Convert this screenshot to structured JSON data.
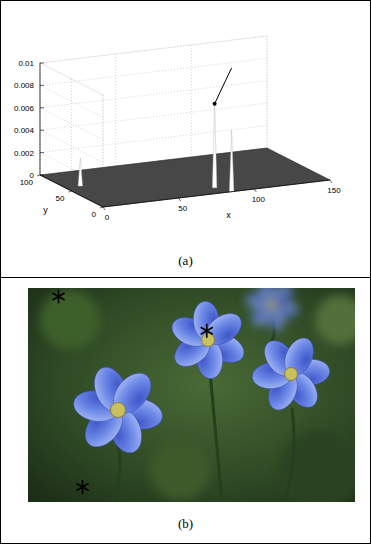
{
  "figure": {
    "panel_labels": [
      "(a)",
      "(b)"
    ]
  },
  "chart_data": {
    "type": "surface3d",
    "x_label": "x",
    "y_label": "y",
    "xlim": [
      0,
      150
    ],
    "ylim": [
      0,
      100
    ],
    "zlim": [
      0,
      0.01
    ],
    "xticks": [
      0,
      50,
      100,
      150
    ],
    "yticks": [
      0,
      50,
      100
    ],
    "zticks": [
      0,
      0.002,
      0.004,
      0.006,
      0.008,
      0.01
    ],
    "grid": true,
    "series": [
      {
        "x": [
          10,
          80,
          85
        ],
        "y": [
          60,
          15,
          0
        ],
        "values": [
          0.0025,
          0.0075,
          0.0055
        ]
      }
    ]
  },
  "image": {
    "marker": "asterisk",
    "markers": [
      {
        "x": 14,
        "y": 4
      },
      {
        "x": 82,
        "y": 20
      },
      {
        "x": 25,
        "y": 93
      }
    ]
  }
}
